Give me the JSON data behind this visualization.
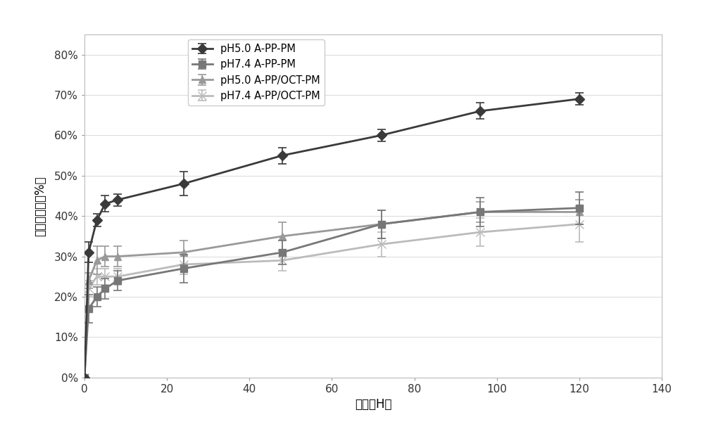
{
  "x": [
    0,
    1,
    3,
    5,
    8,
    24,
    48,
    72,
    96,
    120
  ],
  "series": [
    {
      "label": "pH5.0 A-PP-PM",
      "y": [
        0,
        31,
        39,
        43,
        44,
        48,
        55,
        60,
        66,
        69
      ],
      "yerr": [
        0,
        2.5,
        1.5,
        2.0,
        1.5,
        3.0,
        2.0,
        1.5,
        2.0,
        1.5
      ],
      "color": "#3a3a3a",
      "marker": "D",
      "markersize": 7,
      "linewidth": 2.0,
      "zorder": 5
    },
    {
      "label": "pH7.4 A-PP-PM",
      "y": [
        0,
        17,
        20,
        22,
        24,
        27,
        31,
        38,
        41,
        42
      ],
      "yerr": [
        0,
        3.5,
        2.5,
        2.5,
        2.5,
        3.5,
        3.0,
        3.5,
        3.5,
        4.0
      ],
      "color": "#777777",
      "marker": "s",
      "markersize": 7,
      "linewidth": 2.0,
      "zorder": 4
    },
    {
      "label": "pH5.0 A-PP/OCT-PM",
      "y": [
        0,
        24,
        29,
        30,
        30,
        31,
        35,
        38,
        41,
        41
      ],
      "yerr": [
        0,
        2.0,
        3.5,
        2.5,
        2.5,
        3.0,
        3.5,
        3.5,
        2.5,
        3.0
      ],
      "color": "#999999",
      "marker": "^",
      "markersize": 7,
      "linewidth": 2.0,
      "zorder": 3
    },
    {
      "label": "pH7.4 A-PP/OCT-PM",
      "y": [
        0,
        22,
        25,
        25,
        25,
        28,
        29,
        33,
        36,
        38
      ],
      "yerr": [
        0,
        2.0,
        2.0,
        2.0,
        2.0,
        2.5,
        2.5,
        3.0,
        3.5,
        4.5
      ],
      "color": "#bbbbbb",
      "marker": "x",
      "markersize": 8,
      "linewidth": 2.0,
      "zorder": 2
    }
  ],
  "xlabel": "时间（H）",
  "ylabel": "药物释放度（%）",
  "xlim": [
    0,
    140
  ],
  "ylim": [
    0,
    0.85
  ],
  "xticks": [
    0,
    20,
    40,
    60,
    80,
    100,
    120,
    140
  ],
  "yticks": [
    0,
    0.1,
    0.2,
    0.3,
    0.4,
    0.5,
    0.6,
    0.7,
    0.8
  ],
  "ytick_labels": [
    "0%",
    "10%",
    "20%",
    "30%",
    "40%",
    "50%",
    "60%",
    "70%",
    "80%"
  ],
  "background_color": "#ffffff"
}
